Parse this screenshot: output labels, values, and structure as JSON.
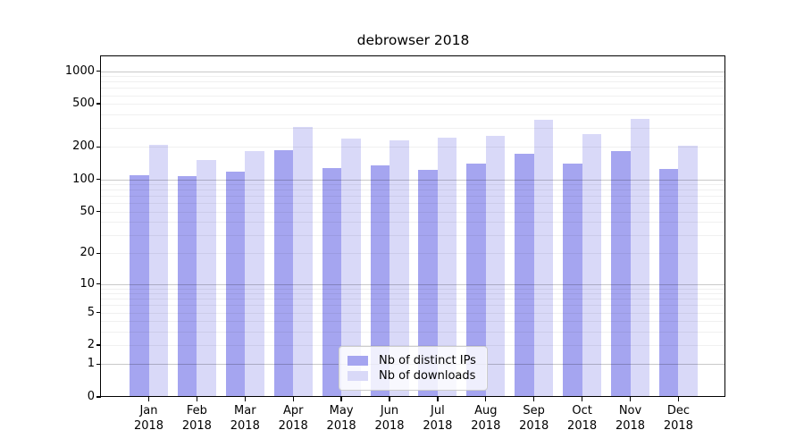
{
  "chart_data": {
    "type": "bar",
    "title": "debrowser 2018",
    "year_label": "2018",
    "categories": [
      "Jan",
      "Feb",
      "Mar",
      "Apr",
      "May",
      "Jun",
      "Jul",
      "Aug",
      "Sep",
      "Oct",
      "Nov",
      "Dec"
    ],
    "series": [
      {
        "name": "Nb of distinct IPs",
        "color": "#a5a5f0",
        "values": [
          110,
          108,
          117,
          186,
          128,
          136,
          122,
          139,
          174,
          141,
          183,
          125
        ]
      },
      {
        "name": "Nb of downloads",
        "color": "#d9d9f8",
        "values": [
          210,
          151,
          182,
          305,
          240,
          230,
          242,
          255,
          355,
          263,
          365,
          204
        ]
      }
    ],
    "yscale": "log1p",
    "yticks": [
      0,
      1,
      2,
      5,
      10,
      20,
      50,
      100,
      200,
      500,
      1000
    ],
    "ylim": [
      0,
      1250
    ],
    "xlabel": "",
    "ylabel": "",
    "legend_position": "lower center",
    "grid": "horizontal; light minor lines, darker lines at 1,10,100,1000"
  }
}
